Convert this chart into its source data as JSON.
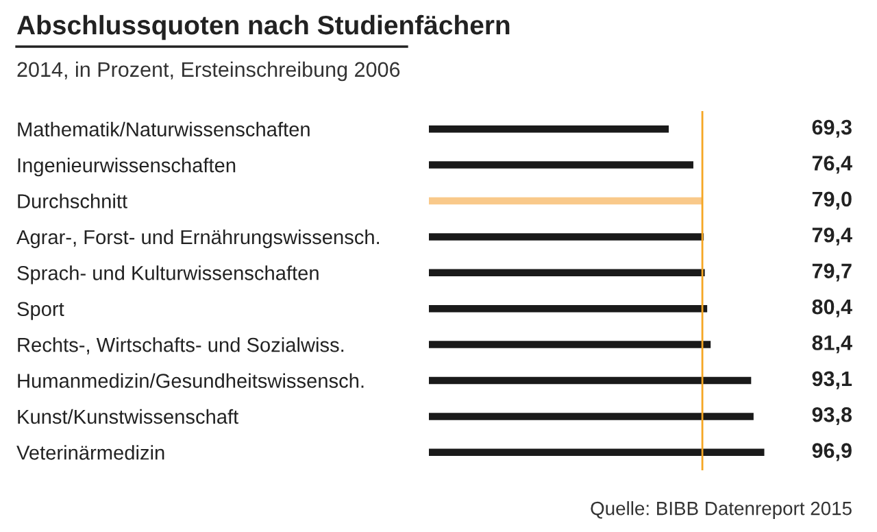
{
  "chart_data": {
    "type": "bar",
    "orientation": "horizontal",
    "title": "Abschlussquoten nach Studienfächern",
    "subtitle": "2014, in Prozent, Ersteinschreibung 2006",
    "categories": [
      "Mathematik/Naturwissenschaften",
      "Ingenieurwissenschaften",
      "Durchschnitt",
      "Agrar-, Forst- und Ernährungswissensch.",
      "Sprach- und Kulturwissenschaften",
      "Sport",
      "Rechts-, Wirtschafts- und Sozialwiss.",
      "Humanmedizin/Gesundheitswissensch.",
      "Kunst/Kunstwissenschaft",
      "Veterinärmedizin"
    ],
    "values": [
      69.3,
      76.4,
      79.0,
      79.4,
      79.7,
      80.4,
      81.4,
      93.1,
      93.8,
      96.9
    ],
    "value_labels": [
      "69,3",
      "76,4",
      "79,0",
      "79,4",
      "79,7",
      "80,4",
      "81,4",
      "93,1",
      "93,8",
      "96,9"
    ],
    "colors": [
      "#1a1a1a",
      "#1a1a1a",
      "#f9c98a",
      "#1a1a1a",
      "#1a1a1a",
      "#1a1a1a",
      "#1a1a1a",
      "#1a1a1a",
      "#1a1a1a",
      "#1a1a1a"
    ],
    "tick_labels": "y",
    "grid": false,
    "legend": false,
    "ref_lines": [
      {
        "axis": "x",
        "value": 79.0,
        "label": null,
        "color": "#f5a623"
      }
    ],
    "annotations": [
      "Quelle: BIBB Datenreport 2015"
    ]
  }
}
